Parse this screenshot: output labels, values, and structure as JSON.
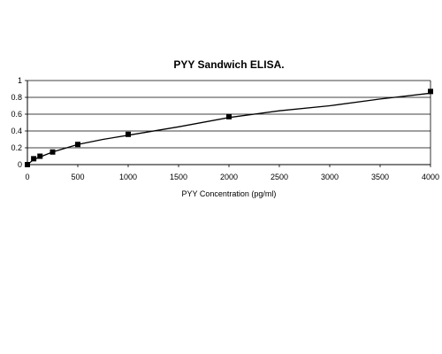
{
  "chart_data": {
    "type": "scatter",
    "title": "PYY Sandwich ELISA.",
    "xlabel": "PYY Concentration (pg/ml)",
    "ylabel": "",
    "xlim": [
      0,
      4000
    ],
    "ylim": [
      0,
      1
    ],
    "x_ticks": [
      "0",
      "500",
      "1000",
      "1500",
      "2000",
      "2500",
      "3000",
      "3500",
      "4000"
    ],
    "y_ticks": [
      "0",
      "0.2",
      "0.4",
      "0.6",
      "0.8",
      "1"
    ],
    "grid": "horizontal",
    "points": [
      {
        "x": 0,
        "y": 0.0
      },
      {
        "x": 62.5,
        "y": 0.07
      },
      {
        "x": 125,
        "y": 0.1
      },
      {
        "x": 250,
        "y": 0.15
      },
      {
        "x": 500,
        "y": 0.24
      },
      {
        "x": 1000,
        "y": 0.36
      },
      {
        "x": 2000,
        "y": 0.57
      },
      {
        "x": 4000,
        "y": 0.87
      }
    ],
    "trendline": [
      {
        "x": 0,
        "y": 0.0
      },
      {
        "x": 62.5,
        "y": 0.06
      },
      {
        "x": 125,
        "y": 0.09
      },
      {
        "x": 250,
        "y": 0.15
      },
      {
        "x": 500,
        "y": 0.24
      },
      {
        "x": 750,
        "y": 0.3
      },
      {
        "x": 1000,
        "y": 0.35
      },
      {
        "x": 1500,
        "y": 0.45
      },
      {
        "x": 2000,
        "y": 0.56
      },
      {
        "x": 2500,
        "y": 0.64
      },
      {
        "x": 3000,
        "y": 0.7
      },
      {
        "x": 3500,
        "y": 0.78
      },
      {
        "x": 4000,
        "y": 0.85
      }
    ],
    "colors": {
      "marker": "#000000",
      "line": "#000000",
      "grid": "#000000"
    }
  }
}
